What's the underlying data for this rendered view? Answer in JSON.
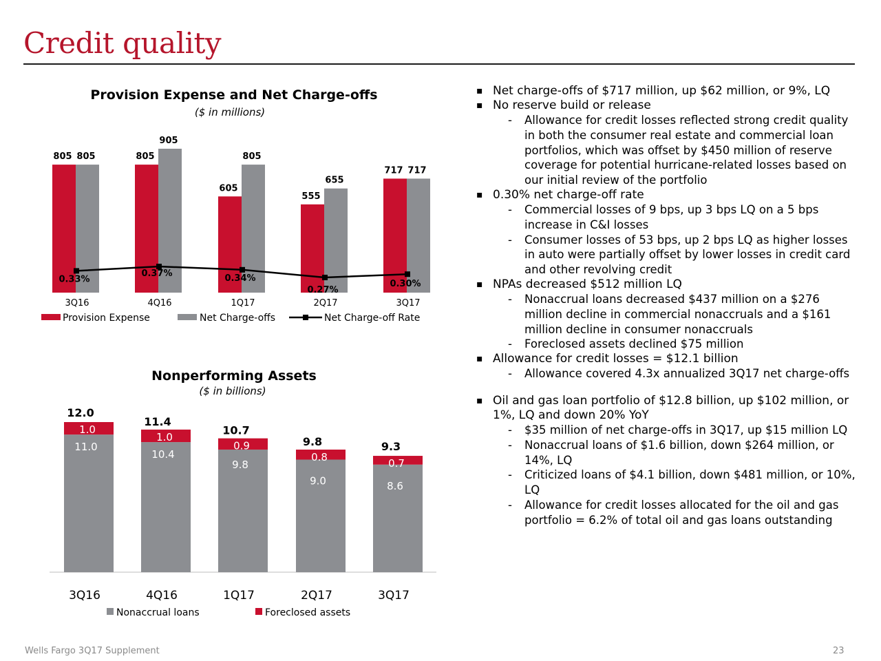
{
  "page": {
    "title": "Credit quality",
    "footer": "Wells Fargo 3Q17 Supplement",
    "page_number": "23"
  },
  "colors": {
    "red": "#c8102e",
    "gray": "#8c8e92",
    "title_red": "#b5152b"
  },
  "chart_data": [
    {
      "type": "bar",
      "title": "Provision Expense and Net Charge-offs",
      "subtitle": "($ in millions)",
      "categories": [
        "3Q16",
        "4Q16",
        "1Q17",
        "2Q17",
        "3Q17"
      ],
      "series": [
        {
          "name": "Provision Expense",
          "values": [
            805,
            805,
            605,
            555,
            717
          ],
          "labels": [
            "805",
            "805",
            "605",
            "555",
            "717"
          ]
        },
        {
          "name": "Net Charge-offs",
          "values": [
            805,
            905,
            805,
            655,
            717
          ],
          "labels": [
            "805",
            "905",
            "805",
            "655",
            "717"
          ]
        },
        {
          "name": "Net Charge-off Rate",
          "type": "line",
          "values": [
            0.33,
            0.37,
            0.34,
            0.27,
            0.3
          ],
          "labels": [
            "0.33%",
            "0.37%",
            "0.34%",
            "0.27%",
            "0.30%"
          ]
        }
      ],
      "ylim": [
        0,
        1000
      ]
    },
    {
      "type": "stacked-bar",
      "title": "Nonperforming Assets",
      "subtitle": "($ in billions)",
      "categories": [
        "3Q16",
        "4Q16",
        "1Q17",
        "2Q17",
        "3Q17"
      ],
      "series": [
        {
          "name": "Nonaccrual loans",
          "values": [
            11.0,
            10.4,
            9.8,
            9.0,
            8.6
          ],
          "labels": [
            "11.0",
            "10.4",
            "9.8",
            "9.0",
            "8.6"
          ]
        },
        {
          "name": "Foreclosed assets",
          "values": [
            1.0,
            1.0,
            0.9,
            0.8,
            0.7
          ],
          "labels": [
            "1.0",
            "1.0",
            "0.9",
            "0.8",
            "0.7"
          ]
        }
      ],
      "totals": [
        "12.0",
        "11.4",
        "10.7",
        "9.8",
        "9.3"
      ],
      "ylim": [
        0,
        12.0
      ]
    }
  ],
  "bullets": [
    {
      "level": 1,
      "text": "Net charge-offs of $717 million, up $62 million, or 9%, LQ"
    },
    {
      "level": 1,
      "text": "No reserve build or release"
    },
    {
      "level": 2,
      "text": "Allowance for credit losses reflected strong credit quality in both the consumer real estate and commercial loan portfolios, which was offset by $450 million of reserve coverage for potential hurricane-related losses based on our initial review of the portfolio"
    },
    {
      "level": 1,
      "text": "0.30% net charge-off rate"
    },
    {
      "level": 2,
      "text": "Commercial losses of 9 bps, up 3 bps LQ on a 5 bps increase in C&I losses"
    },
    {
      "level": 2,
      "text": "Consumer losses of 53 bps, up 2 bps LQ as higher losses in auto were partially offset by lower losses in credit card and other revolving credit"
    },
    {
      "level": 1,
      "text": "NPAs decreased $512 million LQ"
    },
    {
      "level": 2,
      "text": "Nonaccrual loans decreased $437 million on a $276 million decline in commercial nonaccruals and a $161 million decline in consumer nonaccruals"
    },
    {
      "level": 2,
      "text": "Foreclosed assets declined $75 million"
    },
    {
      "level": 1,
      "text": "Allowance for credit losses = $12.1 billion"
    },
    {
      "level": 2,
      "text": "Allowance covered 4.3x annualized 3Q17 net charge-offs"
    },
    {
      "level": "gap"
    },
    {
      "level": 1,
      "text": "Oil and gas loan portfolio of $12.8 billion, up $102 million, or 1%, LQ and down 20% YoY"
    },
    {
      "level": 2,
      "text": "$35 million of net charge-offs in 3Q17, up $15 million LQ"
    },
    {
      "level": 2,
      "text": "Nonaccrual loans of $1.6 billion, down $264 million, or 14%, LQ"
    },
    {
      "level": 2,
      "text": "Criticized loans of $4.1 billion, down $481 million, or 10%, LQ"
    },
    {
      "level": 2,
      "text": "Allowance for credit losses allocated for the oil and gas portfolio = 6.2% of total oil and gas loans outstanding"
    }
  ]
}
